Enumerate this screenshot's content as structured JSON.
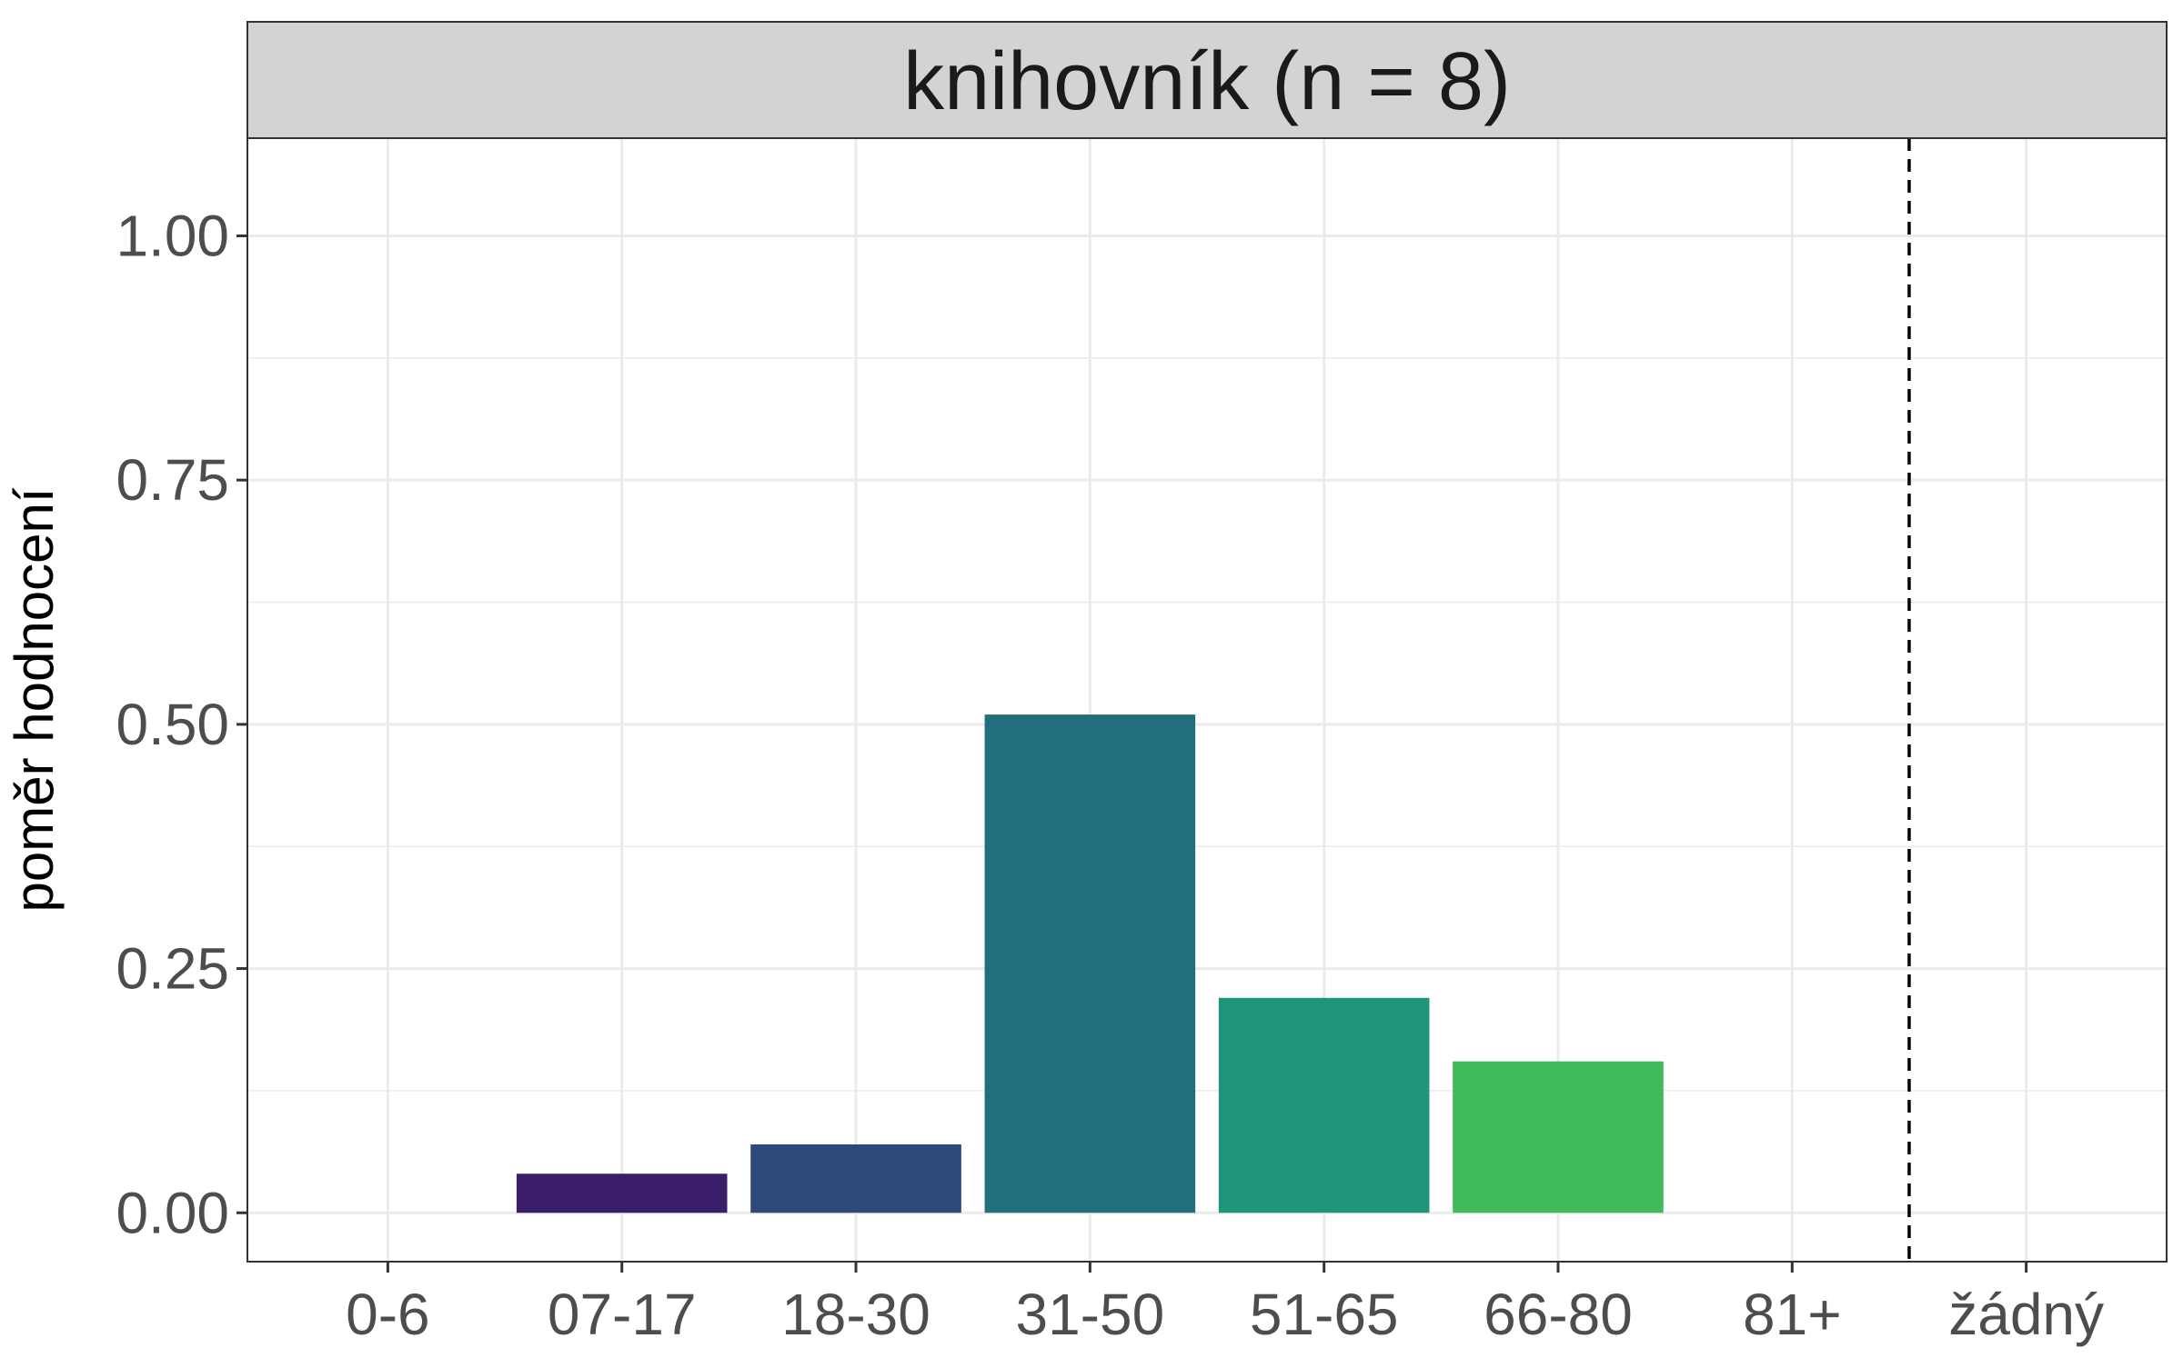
{
  "chart_data": {
    "type": "bar",
    "title": "",
    "facet_label": "knihovník (n = 8)",
    "xlabel": "",
    "ylabel": "poměr hodnocení",
    "categories": [
      "0-6",
      "07-17",
      "18-30",
      "31-50",
      "51-65",
      "66-80",
      "81+",
      "žádný"
    ],
    "values": [
      0,
      0.04,
      0.07,
      0.51,
      0.22,
      0.155,
      0,
      0
    ],
    "colors": [
      "#440154",
      "#3b1e6a",
      "#2b497a",
      "#216f7c",
      "#20947a",
      "#40b95a",
      "#8fd644",
      "#fde725"
    ],
    "ylim": [
      -0.05,
      1.1
    ],
    "yticks": [
      0,
      0.25,
      0.5,
      0.75,
      1
    ],
    "ytick_labels": [
      "0.00",
      "0.25",
      "0.50",
      "0.75",
      "1.00"
    ],
    "reference_line": {
      "between": [
        "81+",
        "žádný"
      ],
      "style": "dashed"
    },
    "grid": true,
    "legend": "none",
    "colors_theme": {
      "strip_fill": "#d3d3d3",
      "grid": "#ebebeb",
      "axis_text": "#4d4d4d",
      "panel_border": "#333333"
    }
  }
}
